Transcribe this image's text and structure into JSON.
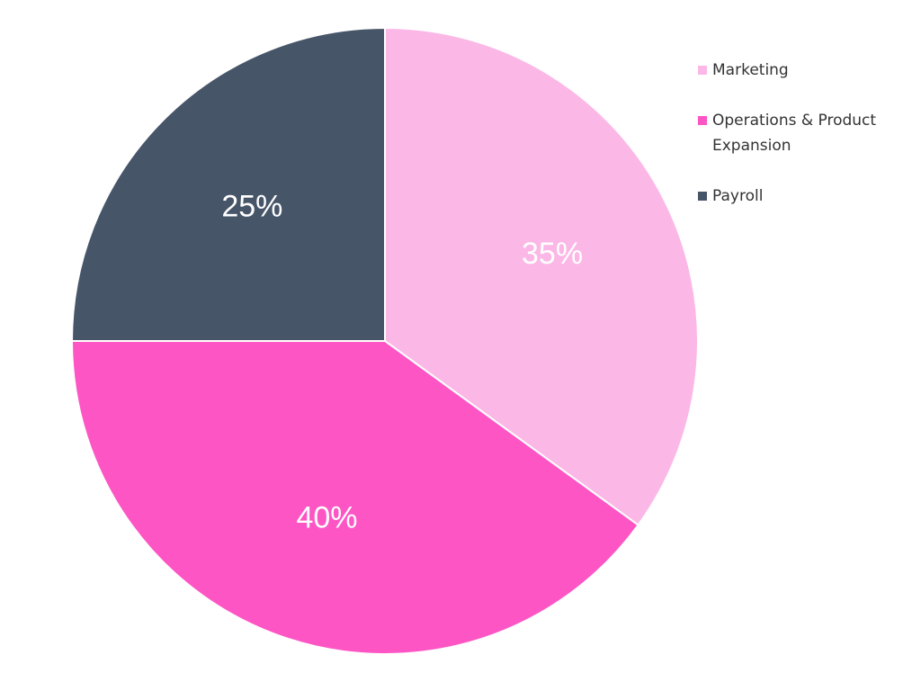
{
  "chart_data": {
    "type": "pie",
    "categories": [
      "Marketing",
      "Operations & Product Expansion",
      "Payroll"
    ],
    "values": [
      35,
      40,
      25
    ],
    "value_labels": [
      "35%",
      "40%",
      "25%"
    ],
    "colors": [
      "#fbb8e6",
      "#fe55c5",
      "#475569"
    ],
    "legend": "top-right"
  }
}
